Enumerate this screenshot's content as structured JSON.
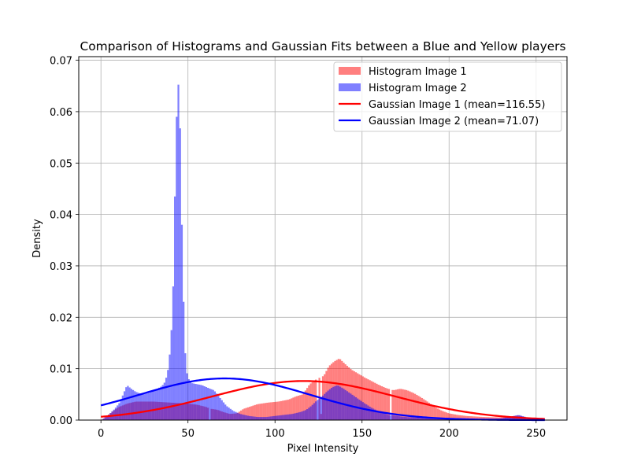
{
  "chart_data": {
    "type": "bar",
    "title": "Comparison of Histograms and Gaussian Fits between a Blue and Yellow players",
    "xlabel": "Pixel Intensity",
    "ylabel": "Density",
    "xlim": [
      -12.75,
      267.75
    ],
    "ylim": [
      0.0,
      0.0707
    ],
    "xticks": [
      0,
      50,
      100,
      150,
      200,
      250
    ],
    "xtick_labels": [
      "0",
      "50",
      "100",
      "150",
      "200",
      "250"
    ],
    "yticks": [
      0.0,
      0.01,
      0.02,
      0.03,
      0.04,
      0.05,
      0.06,
      0.07
    ],
    "ytick_labels": [
      "0.00",
      "0.01",
      "0.02",
      "0.03",
      "0.04",
      "0.05",
      "0.06",
      "0.07"
    ],
    "grid": true,
    "legend_position": "top-right",
    "bin_width": 1,
    "x_start": 0,
    "x_end": 255,
    "series": [
      {
        "name": "Histogram Image 1",
        "kind": "histogram",
        "color": "#ff0000",
        "alpha": 0.5,
        "control_points": [
          [
            0,
            0
          ],
          [
            3,
            0.0006
          ],
          [
            6,
            0.0015
          ],
          [
            10,
            0.0025
          ],
          [
            15,
            0.0032
          ],
          [
            20,
            0.0036
          ],
          [
            30,
            0.0036
          ],
          [
            40,
            0.0034
          ],
          [
            50,
            0.0032
          ],
          [
            55,
            0.003
          ],
          [
            60,
            0.0026
          ],
          [
            63,
            0.0022
          ],
          [
            67,
            0.002
          ],
          [
            70,
            0.0016
          ],
          [
            74,
            0.0012
          ],
          [
            78,
            0.0013
          ],
          [
            82,
            0.0022
          ],
          [
            90,
            0.0031
          ],
          [
            96,
            0.0034
          ],
          [
            102,
            0.0036
          ],
          [
            108,
            0.004
          ],
          [
            112,
            0.0046
          ],
          [
            116,
            0.005
          ],
          [
            120,
            0.007
          ],
          [
            124,
            0.008
          ],
          [
            128,
            0.0086
          ],
          [
            131,
            0.0105
          ],
          [
            134,
            0.0114
          ],
          [
            137,
            0.012
          ],
          [
            140,
            0.011
          ],
          [
            144,
            0.0098
          ],
          [
            148,
            0.009
          ],
          [
            152,
            0.0082
          ],
          [
            156,
            0.0075
          ],
          [
            160,
            0.0068
          ],
          [
            164,
            0.0062
          ],
          [
            168,
            0.0058
          ],
          [
            172,
            0.0061
          ],
          [
            176,
            0.0058
          ],
          [
            180,
            0.0052
          ],
          [
            184,
            0.0044
          ],
          [
            188,
            0.0035
          ],
          [
            192,
            0.0025
          ],
          [
            196,
            0.0018
          ],
          [
            200,
            0.0013
          ],
          [
            205,
            0.001
          ],
          [
            210,
            0.0008
          ],
          [
            220,
            0.0006
          ],
          [
            230,
            0.0005
          ],
          [
            240,
            0.0009
          ],
          [
            245,
            0.0005
          ],
          [
            250,
            0.0003
          ],
          [
            255,
            0.0002
          ]
        ],
        "gaps": [
          [
            62,
            0.0
          ],
          [
            124,
            0.0
          ],
          [
            126,
            0.0012
          ],
          [
            166,
            0.0
          ],
          [
            244,
            0.0
          ]
        ]
      },
      {
        "name": "Histogram Image 2",
        "kind": "histogram",
        "color": "#0000ff",
        "alpha": 0.5,
        "control_points": [
          [
            0,
            0
          ],
          [
            2,
            0.0004
          ],
          [
            5,
            0.0012
          ],
          [
            8,
            0.0022
          ],
          [
            11,
            0.0035
          ],
          [
            13,
            0.0052
          ],
          [
            15,
            0.0068
          ],
          [
            17,
            0.0062
          ],
          [
            20,
            0.0055
          ],
          [
            24,
            0.005
          ],
          [
            28,
            0.0053
          ],
          [
            32,
            0.006
          ],
          [
            35,
            0.0066
          ],
          [
            37,
            0.0075
          ],
          [
            39,
            0.0105
          ],
          [
            40,
            0.015
          ],
          [
            41,
            0.02
          ],
          [
            42,
            0.032
          ],
          [
            43,
            0.055
          ],
          [
            44,
            0.063
          ],
          [
            45,
            0.0675
          ],
          [
            46,
            0.046
          ],
          [
            47,
            0.03
          ],
          [
            48,
            0.016
          ],
          [
            49,
            0.01
          ],
          [
            50,
            0.0082
          ],
          [
            52,
            0.0072
          ],
          [
            55,
            0.007
          ],
          [
            58,
            0.0068
          ],
          [
            62,
            0.0062
          ],
          [
            65,
            0.0058
          ],
          [
            68,
            0.0045
          ],
          [
            72,
            0.0028
          ],
          [
            76,
            0.0018
          ],
          [
            80,
            0.0012
          ],
          [
            85,
            0.0008
          ],
          [
            90,
            0.0006
          ],
          [
            95,
            0.0006
          ],
          [
            100,
            0.0008
          ],
          [
            105,
            0.001
          ],
          [
            110,
            0.0012
          ],
          [
            115,
            0.0016
          ],
          [
            118,
            0.002
          ],
          [
            121,
            0.0028
          ],
          [
            124,
            0.0038
          ],
          [
            127,
            0.0046
          ],
          [
            130,
            0.0056
          ],
          [
            133,
            0.0064
          ],
          [
            136,
            0.0068
          ],
          [
            139,
            0.0062
          ],
          [
            142,
            0.0055
          ],
          [
            145,
            0.0048
          ],
          [
            150,
            0.0036
          ],
          [
            155,
            0.0025
          ],
          [
            160,
            0.0016
          ],
          [
            165,
            0.001
          ],
          [
            175,
            0.0006
          ],
          [
            190,
            0.0003
          ],
          [
            210,
            0.0002
          ],
          [
            230,
            0.0003
          ],
          [
            240,
            0.001
          ],
          [
            245,
            0.0005
          ],
          [
            250,
            0.0002
          ],
          [
            255,
            0.0001
          ]
        ],
        "gaps": []
      },
      {
        "name": "Gaussian Image 1 (mean=116.55)",
        "kind": "gaussian",
        "color": "#ff0000",
        "mean": 116.55,
        "peak": 0.0076
      },
      {
        "name": "Gaussian Image 2 (mean=71.07)",
        "kind": "gaussian",
        "color": "#0000ff",
        "mean": 71.07,
        "peak": 0.0081
      }
    ]
  }
}
